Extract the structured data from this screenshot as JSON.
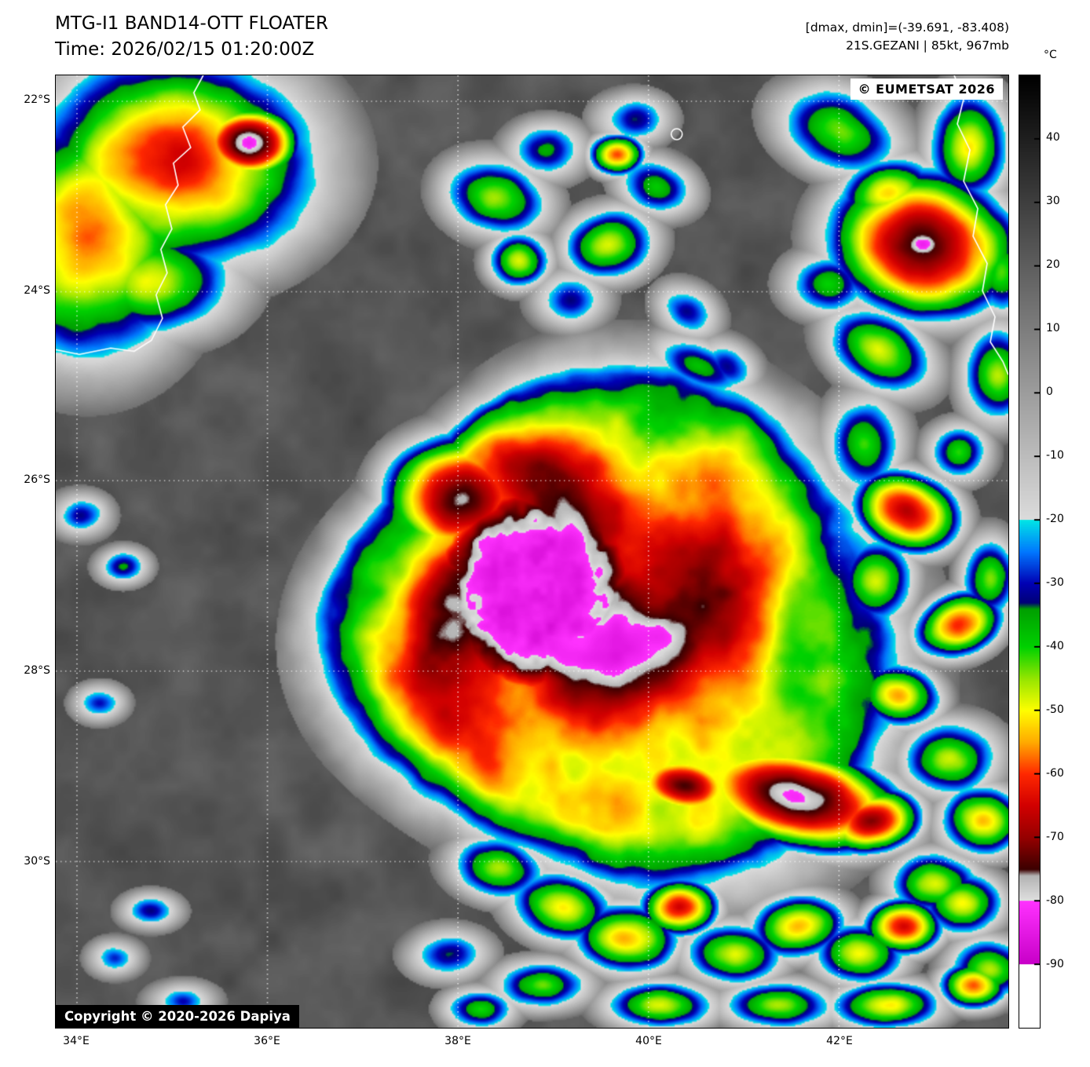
{
  "header": {
    "title": "MTG-I1 BAND14-OTT FLOATER",
    "time_line": "Time: 2026/02/15 01:20:00Z",
    "dmax_dmin": "[dmax, dmin]=(-39.691, -83.408)",
    "storm_info": "21S.GEZANI | 85kt, 967mb"
  },
  "map": {
    "watermark": "© EUMETSAT 2026",
    "copyright": "Copyright © 2020-2026 Dapiya",
    "lat_labels": [
      "22°S",
      "24°S",
      "26°S",
      "28°S",
      "30°S"
    ],
    "lon_labels": [
      "34°E",
      "36°E",
      "38°E",
      "40°E",
      "42°E"
    ]
  },
  "colorbar": {
    "unit": "°C",
    "tick_labels": [
      "40",
      "30",
      "20",
      "10",
      "0",
      "-10",
      "-20",
      "-30",
      "-40",
      "-50",
      "-60",
      "-70",
      "-80",
      "-90"
    ],
    "range_celsius": [
      50,
      -100
    ],
    "stops": [
      [
        50,
        "#000000"
      ],
      [
        -20,
        "#dcdcdc"
      ],
      [
        -20,
        "#00e6e6"
      ],
      [
        -25,
        "#0078ff"
      ],
      [
        -30,
        "#0000b4"
      ],
      [
        -33,
        "#000078"
      ],
      [
        -34,
        "#00a000"
      ],
      [
        -40,
        "#00d200"
      ],
      [
        -45,
        "#96e600"
      ],
      [
        -50,
        "#ffff00"
      ],
      [
        -55,
        "#ffaa00"
      ],
      [
        -60,
        "#ff2800"
      ],
      [
        -65,
        "#d20000"
      ],
      [
        -70,
        "#960000"
      ],
      [
        -75,
        "#3c0000"
      ],
      [
        -76,
        "#b4b4b4"
      ],
      [
        -80,
        "#e1e1e1"
      ],
      [
        -80,
        "#ff32ff"
      ],
      [
        -90,
        "#c800c8"
      ],
      [
        -90,
        "#ffffff"
      ],
      [
        -100,
        "#ffffff"
      ]
    ]
  }
}
